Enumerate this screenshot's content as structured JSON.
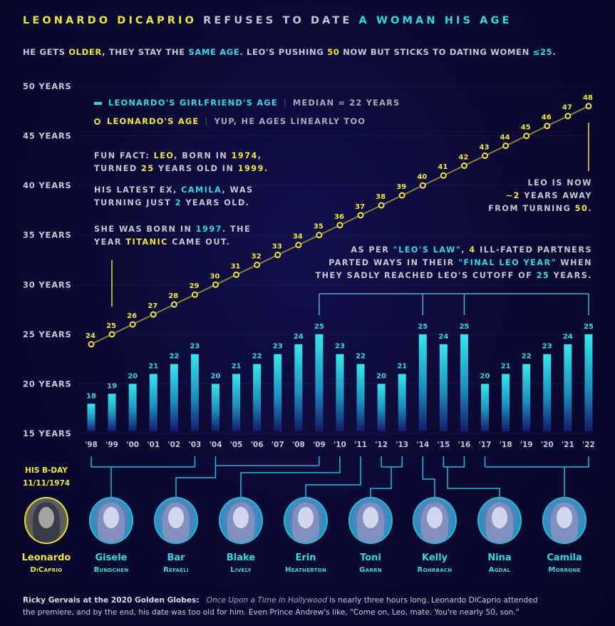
{
  "title": [
    {
      "t": "LEONARDO DICAPRIO ",
      "c": "y"
    },
    {
      "t": "REFUSES TO DATE ",
      "c": "g"
    },
    {
      "t": "A WOMAN HIS AGE",
      "c": "c"
    }
  ],
  "subtitle": [
    {
      "t": "HE GETS ",
      "c": "g"
    },
    {
      "t": "OLDER",
      "c": "y"
    },
    {
      "t": ", THEY STAY THE ",
      "c": "g"
    },
    {
      "t": "SAME AGE",
      "c": "c"
    },
    {
      "t": ". LEO'S PUSHING ",
      "c": "g"
    },
    {
      "t": "50",
      "c": "y"
    },
    {
      "t": " NOW BUT STICKS TO DATING WOMEN ",
      "c": "g"
    },
    {
      "t": "≤25",
      "c": "c"
    },
    {
      "t": ".",
      "c": "g"
    }
  ],
  "legend": {
    "girlfriend": {
      "label": "LEONARDO'S GIRLFRIEND'S AGE",
      "desc": "MEDIAN = 22 YEARS"
    },
    "leo": {
      "label": "LEONARDO'S AGE",
      "desc": "YUP, HE AGES LINEARLY TOO"
    }
  },
  "notes": {
    "fun_fact": [
      [
        {
          "t": "FUN FACT: ",
          "c": "g"
        },
        {
          "t": "LEO",
          "c": "y"
        },
        {
          "t": ", BORN IN ",
          "c": "g"
        },
        {
          "t": "1974",
          "c": "y"
        },
        {
          "t": ",",
          "c": "g"
        }
      ],
      [
        {
          "t": "TURNED ",
          "c": "g"
        },
        {
          "t": "25",
          "c": "y"
        },
        {
          "t": " YEARS OLD IN ",
          "c": "g"
        },
        {
          "t": "1999",
          "c": "y"
        },
        {
          "t": ".",
          "c": "g"
        }
      ]
    ],
    "latest_ex": [
      [
        {
          "t": "HIS LATEST EX, ",
          "c": "g"
        },
        {
          "t": "CAMILA",
          "c": "c"
        },
        {
          "t": ", WAS",
          "c": "g"
        }
      ],
      [
        {
          "t": "TURNING JUST ",
          "c": "g"
        },
        {
          "t": "2",
          "c": "c"
        },
        {
          "t": " YEARS OLD.",
          "c": "g"
        }
      ]
    ],
    "born": [
      [
        {
          "t": "SHE WAS BORN IN ",
          "c": "g"
        },
        {
          "t": "1997",
          "c": "c"
        },
        {
          "t": ". THE",
          "c": "g"
        }
      ],
      [
        {
          "t": "YEAR ",
          "c": "g"
        },
        {
          "t": "TITANIC",
          "c": "y"
        },
        {
          "t": " CAME OUT.",
          "c": "g"
        }
      ]
    ],
    "leo_now": [
      [
        {
          "t": "LEO IS NOW",
          "c": "g"
        }
      ],
      [
        {
          "t": "~2",
          "c": "y"
        },
        {
          "t": " YEARS AWAY",
          "c": "g"
        }
      ],
      [
        {
          "t": "FROM TURNING ",
          "c": "g"
        },
        {
          "t": "50",
          "c": "y"
        },
        {
          "t": ".",
          "c": "g"
        }
      ]
    ],
    "leos_law": [
      [
        {
          "t": "AS PER ",
          "c": "g"
        },
        {
          "t": "\"LEO'S LAW\"",
          "c": "c"
        },
        {
          "t": ", ",
          "c": "g"
        },
        {
          "t": "4",
          "c": "y"
        },
        {
          "t": " ILL-FATED PARTNERS",
          "c": "g"
        }
      ],
      [
        {
          "t": "PARTED WAYS IN THEIR ",
          "c": "g"
        },
        {
          "t": "\"FINAL LEO YEAR\"",
          "c": "c"
        },
        {
          "t": " WHEN",
          "c": "g"
        }
      ],
      [
        {
          "t": "THEY SADLY REACHED LEO'S CUTOFF OF ",
          "c": "g"
        },
        {
          "t": "25",
          "c": "c"
        },
        {
          "t": " YEARS.",
          "c": "g"
        }
      ]
    ]
  },
  "chart_data": {
    "type": "bar",
    "categories": [
      "'98",
      "'99",
      "'00",
      "'01",
      "'02",
      "'03",
      "'04",
      "'05",
      "'06",
      "'07",
      "'08",
      "'09",
      "'10",
      "'11",
      "'12",
      "'13",
      "'14",
      "'15",
      "'16",
      "'17",
      "'18",
      "'19",
      "'20",
      "'21",
      "'22"
    ],
    "series": [
      {
        "name": "LEONARDO'S GIRLFRIEND'S AGE",
        "type": "bar",
        "values": [
          18,
          19,
          20,
          21,
          22,
          23,
          20,
          21,
          22,
          23,
          24,
          25,
          23,
          22,
          20,
          21,
          25,
          24,
          25,
          20,
          21,
          22,
          23,
          24,
          25
        ]
      },
      {
        "name": "LEONARDO'S AGE",
        "type": "line",
        "values": [
          24,
          25,
          26,
          27,
          28,
          29,
          30,
          31,
          32,
          33,
          34,
          35,
          36,
          37,
          38,
          39,
          40,
          41,
          42,
          43,
          44,
          45,
          46,
          47,
          48
        ]
      }
    ],
    "ylim": [
      15,
      50
    ],
    "yticks": [
      15,
      20,
      25,
      30,
      35,
      40,
      45,
      50
    ],
    "ytick_labels": [
      "15 YEARS",
      "20 YEARS",
      "25 YEARS",
      "30 YEARS",
      "35 YEARS",
      "40 YEARS",
      "45 YEARS",
      "50 YEARS"
    ],
    "grid": true,
    "legend": "top-left",
    "final_leo_year_bars": [
      "'09",
      "'14",
      "'16",
      "'22"
    ],
    "colors": {
      "bars": "#2fd9e0",
      "leo": "#f2e53c",
      "line": "#8a7d3a"
    }
  },
  "bday": {
    "label": "HIS B-DAY",
    "date": "11/11/1974"
  },
  "people": [
    {
      "first": "Leonardo",
      "last": "DiCaprio",
      "years": []
    },
    {
      "first": "Gisele",
      "last": "Bundchen",
      "years": [
        "'98",
        "'03"
      ]
    },
    {
      "first": "Bar",
      "last": "Refaeli",
      "years": [
        "'04",
        "'09"
      ]
    },
    {
      "first": "Blake",
      "last": "Lively",
      "years": [
        "'10"
      ]
    },
    {
      "first": "Erin",
      "last": "Heatherton",
      "years": [
        "'11"
      ]
    },
    {
      "first": "Toni",
      "last": "Garrn",
      "years": [
        "'12",
        "'13"
      ]
    },
    {
      "first": "Kelly",
      "last": "Rohrbach",
      "years": [
        "'14"
      ]
    },
    {
      "first": "Nina",
      "last": "Agdal",
      "years": [
        "'15",
        "'16"
      ]
    },
    {
      "first": "Camila",
      "last": "Morrone",
      "years": [
        "'17",
        "'22"
      ]
    }
  ],
  "quote": {
    "speaker": "Ricky Gervais at the 2020 Golden Globes:",
    "film": "Once Upon a Time in Hollywood",
    "line1": " is nearly three hours long. Leonardo DiCaprio attended",
    "line2": "the premiere, and by the end, his date was too old for him.  Even Prince Andrew's like, \"Come on, Leo, mate. You're nearly 50, son.\""
  }
}
